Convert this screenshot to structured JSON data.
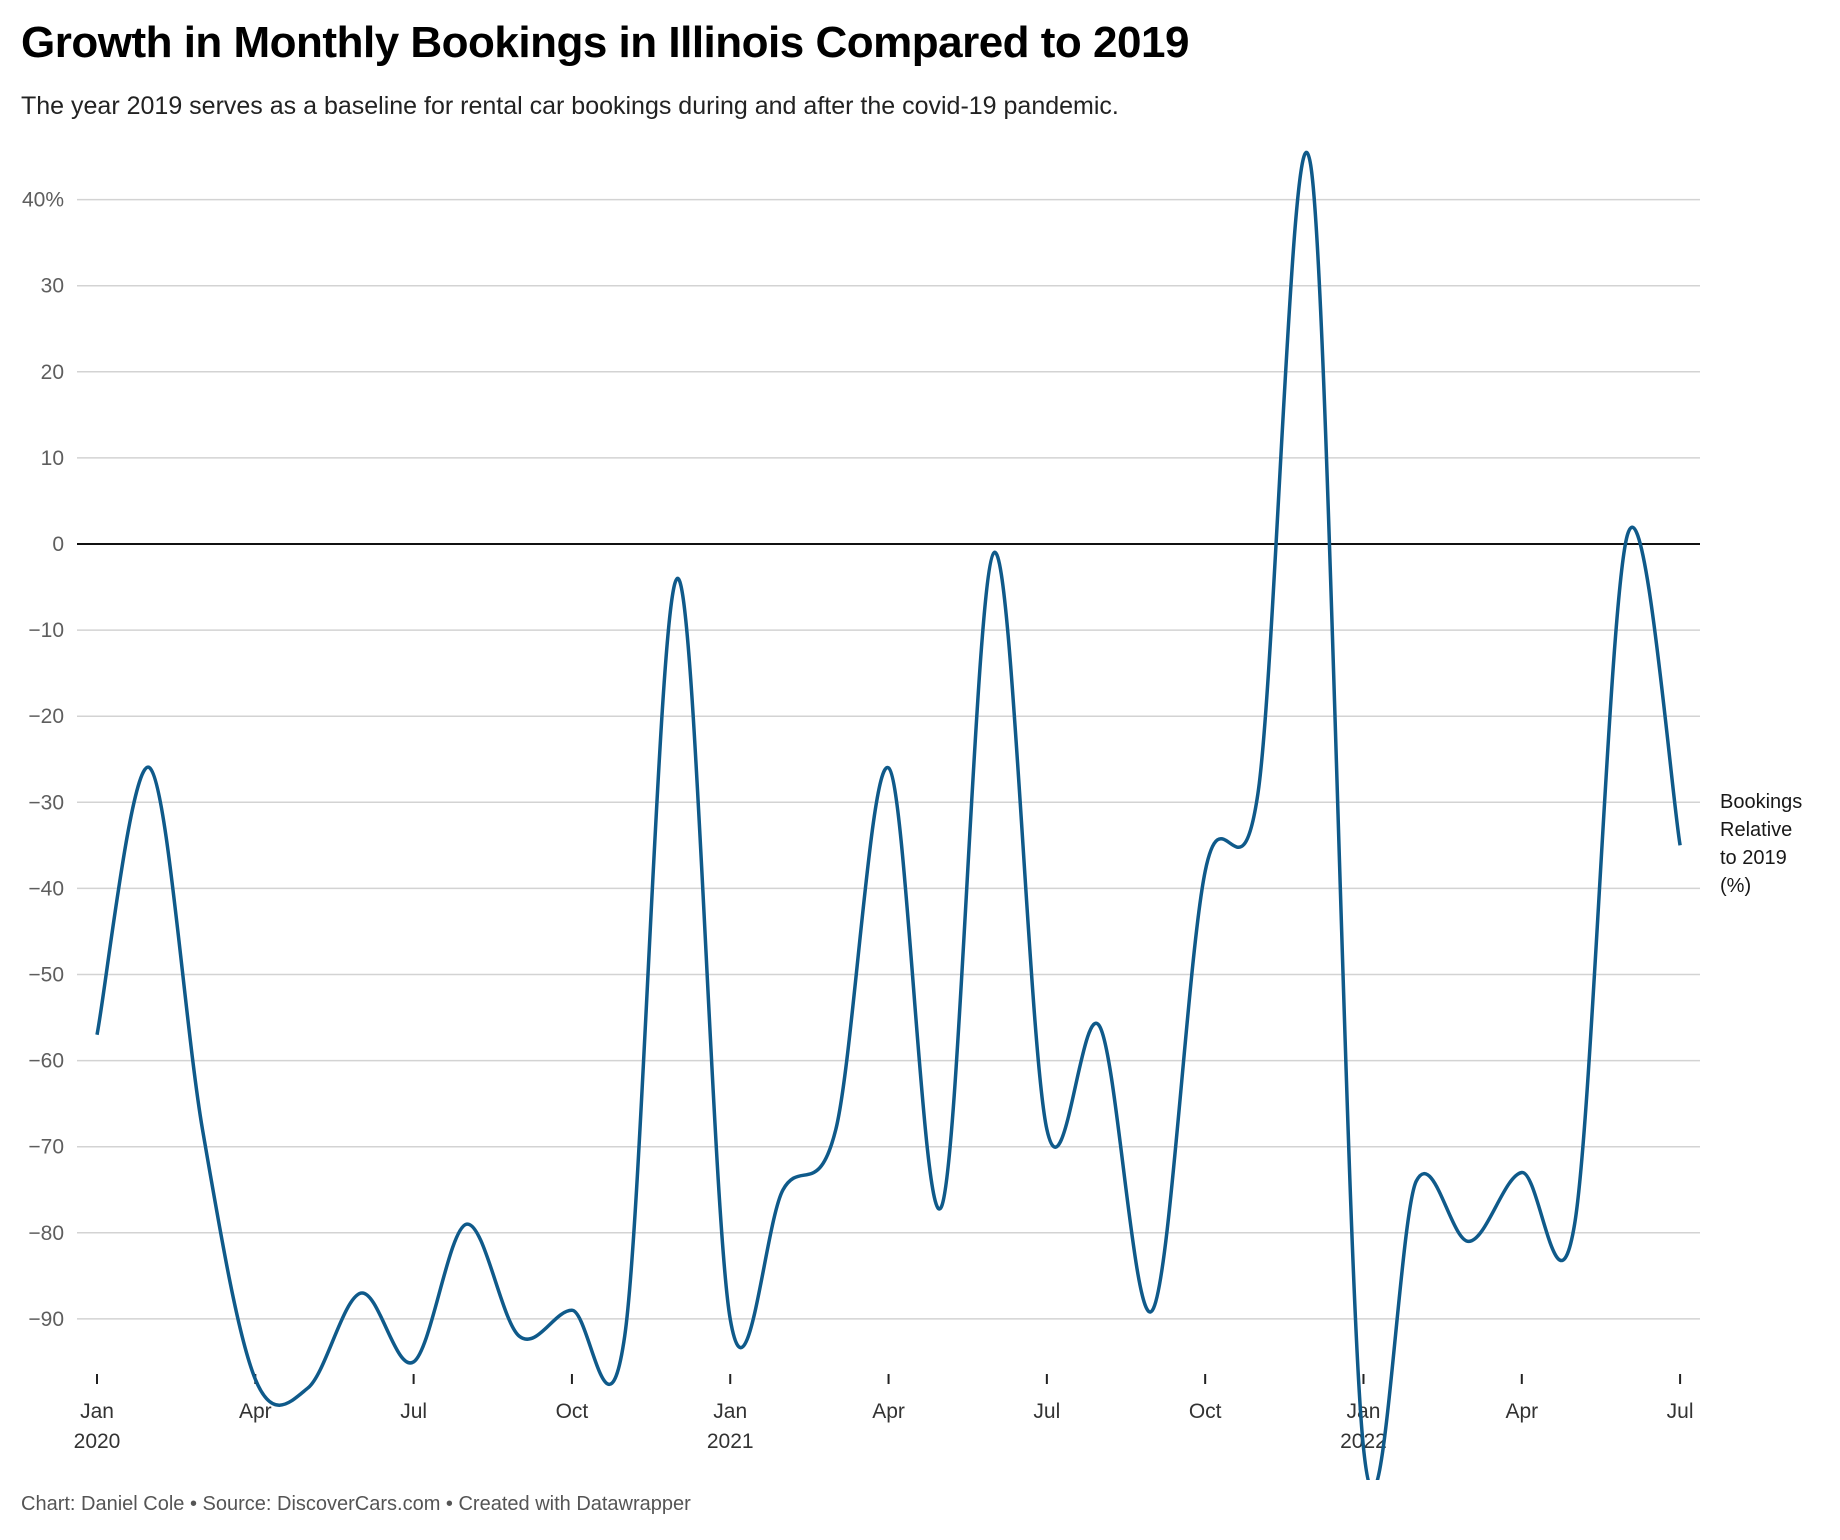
{
  "header": {
    "title": "Growth in Monthly Bookings in Illinois Compared to 2019",
    "subtitle": "The year 2019 serves as a baseline for rental car bookings during and after the covid-19 pandemic."
  },
  "footer": {
    "text": "Chart: Daniel Cole • Source: DiscoverCars.com • Created with Datawrapper"
  },
  "colors": {
    "line": "#0f5a8a",
    "grid": "#d3d3d3",
    "zero_line": "#111111",
    "axis_text": "#5e5e5e"
  },
  "chart_data": {
    "type": "line",
    "title": "Growth in Monthly Bookings in Illinois Compared to 2019",
    "subtitle": "The year 2019 serves as a baseline for rental car bookings during and after the covid-19 pandemic.",
    "xlabel": "",
    "ylabel": "",
    "ylim": [
      -100,
      45
    ],
    "y_ticks": [
      40,
      30,
      20,
      10,
      0,
      -10,
      -20,
      -30,
      -40,
      -50,
      -60,
      -70,
      -80,
      -90
    ],
    "y_tick_labels": [
      "40%",
      "30",
      "20",
      "10",
      "0",
      "−10",
      "−20",
      "−30",
      "−40",
      "−50",
      "−60",
      "−70",
      "−80",
      "−90"
    ],
    "x_ticks": [
      {
        "label": "Jan",
        "sub": "2020",
        "index": 0
      },
      {
        "label": "Apr",
        "sub": "",
        "index": 3
      },
      {
        "label": "Jul",
        "sub": "",
        "index": 6
      },
      {
        "label": "Oct",
        "sub": "",
        "index": 9
      },
      {
        "label": "Jan",
        "sub": "2021",
        "index": 12
      },
      {
        "label": "Apr",
        "sub": "",
        "index": 15
      },
      {
        "label": "Jul",
        "sub": "",
        "index": 18
      },
      {
        "label": "Oct",
        "sub": "",
        "index": 21
      },
      {
        "label": "Jan",
        "sub": "2022",
        "index": 24
      },
      {
        "label": "Apr",
        "sub": "",
        "index": 27
      },
      {
        "label": "Jul",
        "sub": "",
        "index": 30
      }
    ],
    "grid": true,
    "legend_position": "inline-right",
    "categories": [
      "Jan 2020",
      "Feb 2020",
      "Mar 2020",
      "Apr 2020",
      "May 2020",
      "Jun 2020",
      "Jul 2020",
      "Aug 2020",
      "Sep 2020",
      "Oct 2020",
      "Nov 2020",
      "Dec 2020",
      "Jan 2021",
      "Feb 2021",
      "Mar 2021",
      "Apr 2021",
      "May 2021",
      "Jun 2021",
      "Jul 2021",
      "Aug 2021",
      "Sep 2021",
      "Oct 2021",
      "Nov 2021",
      "Dec 2021",
      "Jan 2022",
      "Feb 2022",
      "Mar 2022",
      "Apr 2022",
      "May 2022",
      "Jun 2022",
      "Jul 2022"
    ],
    "series": [
      {
        "name": "Bookings Relative to 2019 (%)",
        "label_lines": [
          "Bookings",
          "Relative",
          "to 2019",
          "(%)"
        ],
        "values": [
          -57,
          -26,
          -68,
          -97,
          -98,
          -87,
          -95,
          -79,
          -92,
          -89,
          -92,
          -4,
          -90,
          -75,
          -68,
          -26,
          -77,
          -1,
          -68,
          -56,
          -89,
          -38,
          -29,
          44,
          -105,
          -74,
          -81,
          -73,
          -79,
          1,
          -35
        ]
      }
    ]
  }
}
